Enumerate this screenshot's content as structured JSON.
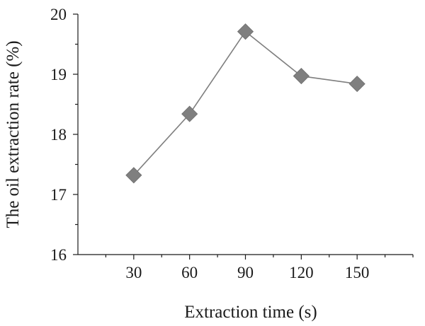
{
  "chart_data": {
    "type": "line",
    "xlabel": "Extraction time (s)",
    "ylabel": "The oil extraction rate (%)",
    "x": [
      30,
      60,
      90,
      120,
      150
    ],
    "xticks": [
      "30",
      "60",
      "90",
      "120",
      "150"
    ],
    "xlim": [
      0,
      180
    ],
    "yticks": [
      "16",
      "17",
      "18",
      "19",
      "20"
    ],
    "ylim": [
      16,
      20
    ],
    "series": [
      {
        "values": [
          17.32,
          18.34,
          19.71,
          18.97,
          18.84
        ]
      }
    ],
    "line_color": "#7f7f7f",
    "marker": "diamond",
    "marker_color": "#7f7f7f",
    "grid": false,
    "legend": "none"
  }
}
